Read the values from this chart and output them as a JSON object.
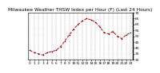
{
  "title": "Milwaukee Weather THSW Index per Hour (F) (Last 24 Hours)",
  "x_values": [
    0,
    1,
    2,
    3,
    4,
    5,
    6,
    7,
    8,
    9,
    10,
    11,
    12,
    13,
    14,
    15,
    16,
    17,
    18,
    19,
    20,
    21,
    22,
    23
  ],
  "y_values": [
    38,
    36,
    35,
    34,
    36,
    37,
    38,
    41,
    46,
    51,
    56,
    60,
    63,
    65,
    64,
    62,
    58,
    53,
    52,
    54,
    50,
    48,
    51,
    53
  ],
  "ylim": [
    30,
    70
  ],
  "yticks": [
    30,
    35,
    40,
    45,
    50,
    55,
    60,
    65,
    70
  ],
  "ytick_labels": [
    "30",
    "35",
    "40",
    "45",
    "50",
    "55",
    "60",
    "65",
    "70"
  ],
  "xtick_labels": [
    "0",
    "1",
    "2",
    "3",
    "4",
    "5",
    "6",
    "7",
    "8",
    "9",
    "10",
    "11",
    "12",
    "13",
    "14",
    "15",
    "16",
    "17",
    "18",
    "19",
    "20",
    "21",
    "22",
    "23"
  ],
  "line_color": "#cc0000",
  "marker_color": "#000000",
  "bg_color": "#ffffff",
  "grid_color": "#999999",
  "title_fontsize": 4.2,
  "tick_fontsize": 3.2,
  "line_width": 0.7,
  "marker_size": 1.5
}
